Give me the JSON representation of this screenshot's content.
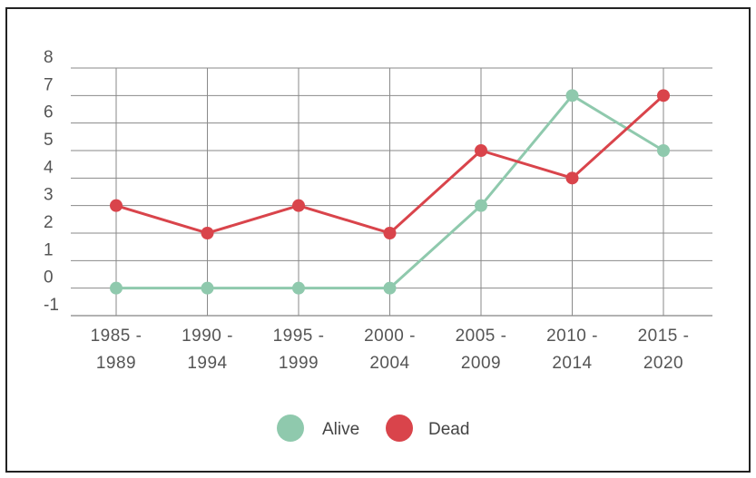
{
  "chart_data": {
    "type": "line",
    "title": "",
    "xlabel": "",
    "ylabel": "",
    "categories": [
      [
        "1985 -",
        "1989"
      ],
      [
        "1990 -",
        "1994"
      ],
      [
        "1995 -",
        "1999"
      ],
      [
        "2000 -",
        "2004"
      ],
      [
        "2005 -",
        "2009"
      ],
      [
        "2010 -",
        "2014"
      ],
      [
        "2015 -",
        "2020"
      ]
    ],
    "yticks": [
      "8",
      "7",
      "6",
      "5",
      "4",
      "3",
      "2",
      "1",
      "0",
      "-1"
    ],
    "ylim": [
      -1,
      8
    ],
    "grid": true,
    "legend_position": "bottom",
    "series": [
      {
        "name": "Alive",
        "color": "#8fc9ad",
        "values": [
          0,
          0,
          0,
          0,
          3,
          7,
          5
        ]
      },
      {
        "name": "Dead",
        "color": "#d9444b",
        "values": [
          3,
          2,
          3,
          2,
          5,
          4,
          7
        ]
      }
    ]
  }
}
